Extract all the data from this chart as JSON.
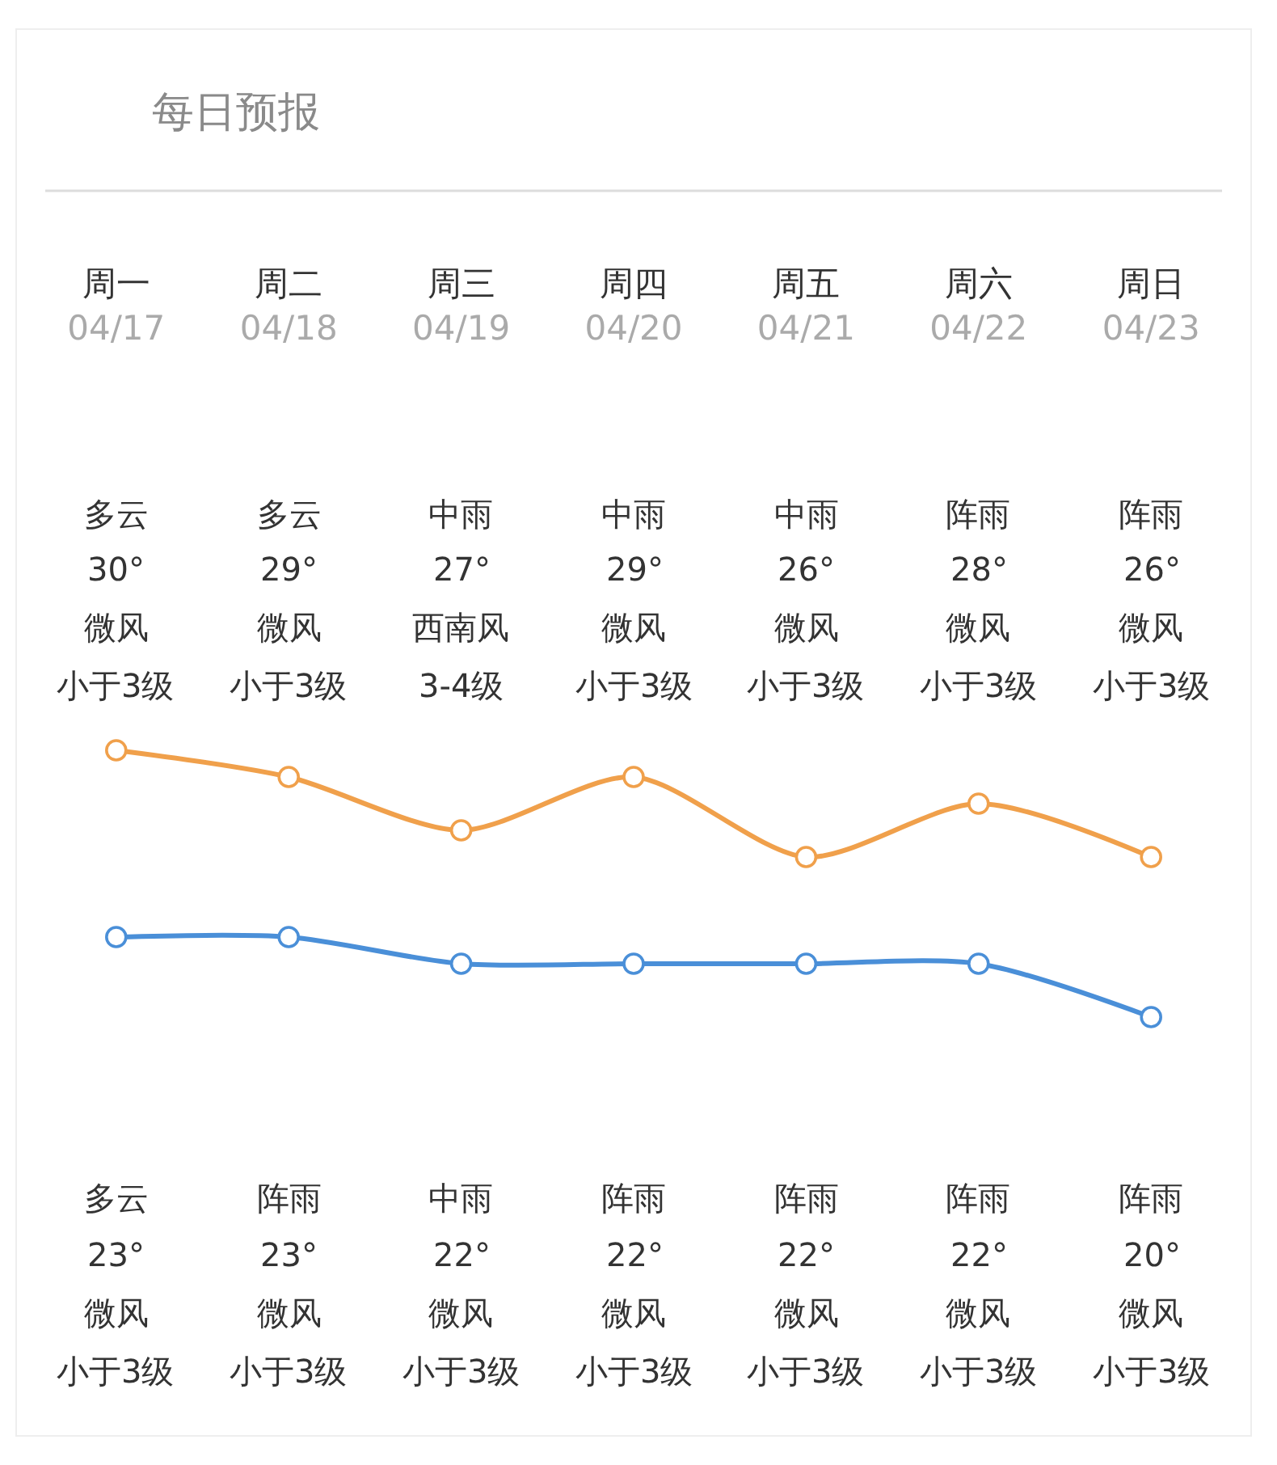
{
  "chart_data": {
    "type": "line",
    "title": "每日预报",
    "categories": [
      "周一\n04/17",
      "周二\n04/18",
      "周三\n04/19",
      "周四\n04/20",
      "周五\n04/21",
      "周六\n04/22",
      "周日\n04/23"
    ],
    "series": [
      {
        "color": "#f0a04b",
        "values": [
          30,
          29,
          27,
          29,
          26,
          28,
          26
        ],
        "value_labels": [
          "30°",
          "29°",
          "27°",
          "29°",
          "26°",
          "28°",
          "26°"
        ]
      },
      {
        "color": "#4a8fd8",
        "values": [
          23,
          23,
          22,
          22,
          22,
          22,
          20
        ],
        "value_labels": [
          "23°",
          "23°",
          "22°",
          "22°",
          "22°",
          "22°",
          "20°"
        ]
      }
    ],
    "annotations": [
      "多云",
      "多云",
      "中雨",
      "中雨",
      "中雨",
      "阵雨",
      "阵雨",
      "微风",
      "微风",
      "西南风",
      "微风",
      "微风",
      "微风",
      "微风",
      "小于3级",
      "小于3级",
      "3-4级",
      "小于3级",
      "小于3级",
      "小于3级",
      "小于3级",
      "多云",
      "阵雨",
      "中雨",
      "阵雨",
      "阵雨",
      "阵雨",
      "阵雨",
      "微风",
      "微风",
      "微风",
      "微风",
      "微风",
      "微风",
      "微风",
      "小于3级",
      "小于3级",
      "小于3级",
      "小于3级",
      "小于3级",
      "小于3级",
      "小于3级"
    ],
    "legend": false,
    "marker": "circle",
    "line_style": "solid"
  }
}
